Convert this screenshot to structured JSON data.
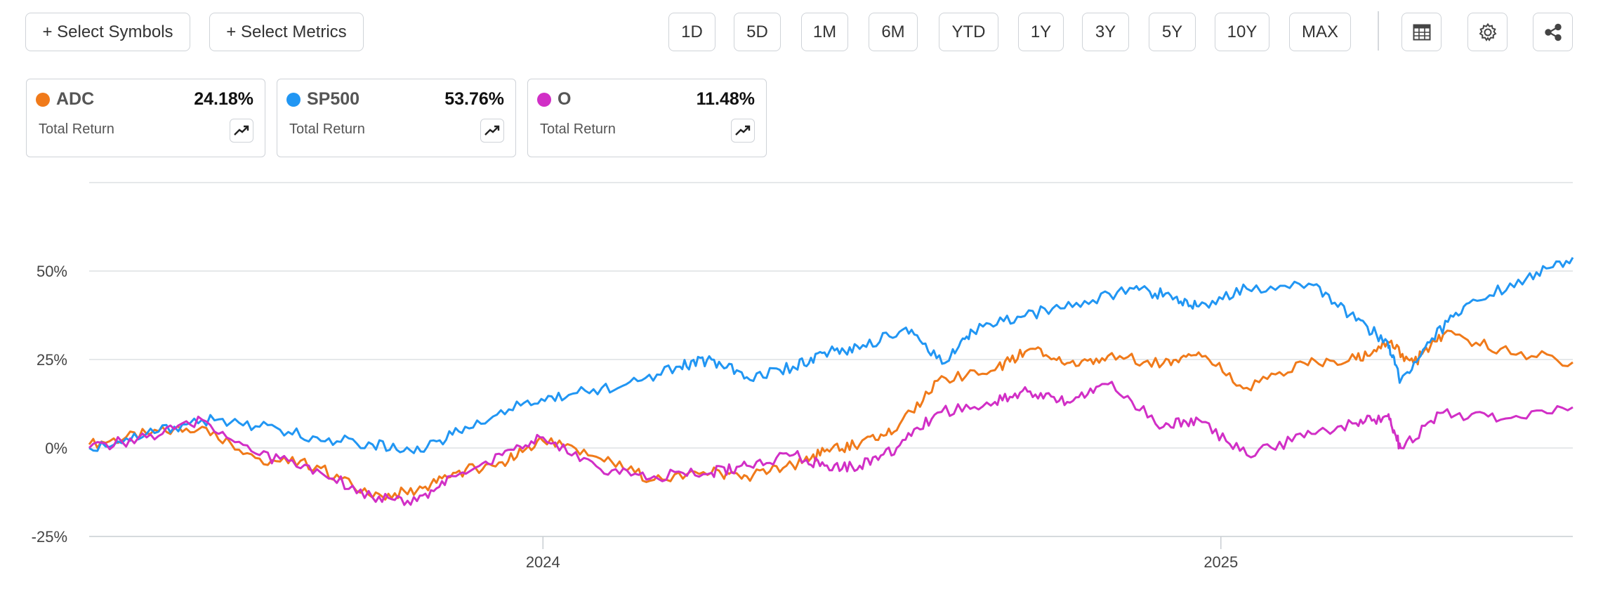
{
  "toolbar": {
    "select_symbols": "+ Select Symbols",
    "select_metrics": "+ Select Metrics",
    "ranges": [
      "1D",
      "5D",
      "1M",
      "6M",
      "YTD",
      "1Y",
      "3Y",
      "5Y",
      "10Y",
      "MAX"
    ]
  },
  "cards": [
    {
      "symbol": "ADC",
      "value": "24.18%",
      "metric": "Total Return",
      "color": "#f07a1a"
    },
    {
      "symbol": "SP500",
      "value": "53.76%",
      "metric": "Total Return",
      "color": "#2196f3"
    },
    {
      "symbol": "O",
      "value": "11.48%",
      "metric": "Total Return",
      "color": "#d12fc6"
    }
  ],
  "icons": [
    "table-icon",
    "gear-icon",
    "share-icon",
    "trend-up-icon"
  ],
  "chart_data": {
    "type": "line",
    "title": "",
    "xlabel": "",
    "ylabel": "",
    "ylim": [
      -25,
      75
    ],
    "yticks": [
      -25,
      0,
      25,
      50
    ],
    "ytick_labels": [
      "-25%",
      "0%",
      "25%",
      "50%"
    ],
    "xlim": [
      "2023-05-01",
      "2025-07-10"
    ],
    "xticks": [
      "2024-01-01",
      "2025-01-01"
    ],
    "xtick_labels": [
      "2024",
      "2025"
    ],
    "grid": true,
    "legend": "top cards",
    "series": [
      {
        "name": "ADC",
        "color": "#f07a1a",
        "x": [
          "2023-05-01",
          "2023-06-01",
          "2023-07-01",
          "2023-08-01",
          "2023-09-01",
          "2023-10-01",
          "2023-10-25",
          "2023-11-15",
          "2023-12-10",
          "2024-01-01",
          "2024-02-01",
          "2024-03-01",
          "2024-04-01",
          "2024-04-20",
          "2024-05-15",
          "2024-06-01",
          "2024-06-20",
          "2024-07-10",
          "2024-08-01",
          "2024-09-01",
          "2024-09-20",
          "2024-10-10",
          "2024-11-01",
          "2024-12-01",
          "2024-12-20",
          "2025-01-15",
          "2025-02-15",
          "2025-03-15",
          "2025-04-01",
          "2025-04-15",
          "2025-05-01",
          "2025-06-01",
          "2025-07-10"
        ],
        "y": [
          1,
          4,
          6,
          -3,
          -5,
          -14,
          -12,
          -7,
          -4,
          2,
          -3,
          -9,
          -7,
          -8,
          -5,
          -1,
          1,
          5,
          19,
          22,
          28,
          24,
          26,
          24,
          27,
          17,
          24,
          25,
          30,
          24,
          32,
          28,
          24.2
        ]
      },
      {
        "name": "SP500",
        "color": "#2196f3",
        "x": [
          "2023-05-01",
          "2023-06-01",
          "2023-07-01",
          "2023-08-01",
          "2023-09-01",
          "2023-10-01",
          "2023-10-27",
          "2023-11-20",
          "2023-12-20",
          "2024-01-15",
          "2024-02-15",
          "2024-03-15",
          "2024-04-01",
          "2024-04-20",
          "2024-05-15",
          "2024-06-01",
          "2024-06-20",
          "2024-07-15",
          "2024-08-05",
          "2024-08-20",
          "2024-09-15",
          "2024-10-15",
          "2024-11-15",
          "2024-12-05",
          "2024-12-20",
          "2025-01-15",
          "2025-02-20",
          "2025-03-15",
          "2025-04-01",
          "2025-04-08",
          "2025-04-25",
          "2025-05-15",
          "2025-06-15",
          "2025-07-10"
        ],
        "y": [
          0,
          4,
          8,
          6,
          3,
          1,
          -1,
          6,
          12,
          15,
          18,
          23,
          25,
          20,
          23,
          27,
          28,
          34,
          24,
          33,
          37,
          41,
          45,
          43,
          40,
          45,
          46,
          36,
          30,
          19,
          31,
          41,
          48,
          53.8
        ]
      },
      {
        "name": "O",
        "color": "#d12fc6",
        "x": [
          "2023-05-01",
          "2023-06-01",
          "2023-07-01",
          "2023-08-01",
          "2023-09-01",
          "2023-10-01",
          "2023-10-25",
          "2023-11-15",
          "2023-12-10",
          "2024-01-01",
          "2024-02-01",
          "2024-03-01",
          "2024-04-01",
          "2024-04-20",
          "2024-05-15",
          "2024-06-01",
          "2024-06-20",
          "2024-07-10",
          "2024-08-01",
          "2024-09-01",
          "2024-09-20",
          "2024-10-10",
          "2024-11-01",
          "2024-12-01",
          "2024-12-20",
          "2025-01-15",
          "2025-02-15",
          "2025-03-15",
          "2025-04-01",
          "2025-04-08",
          "2025-05-01",
          "2025-06-01",
          "2025-07-10"
        ],
        "y": [
          0,
          3,
          8,
          -2,
          -6,
          -14,
          -15,
          -8,
          -2,
          3,
          -6,
          -8,
          -7,
          -5,
          -2,
          -5,
          -5,
          0,
          10,
          13,
          16,
          13,
          18,
          6,
          8,
          -2,
          3,
          7,
          9,
          0,
          10,
          8,
          11.5
        ]
      }
    ]
  }
}
